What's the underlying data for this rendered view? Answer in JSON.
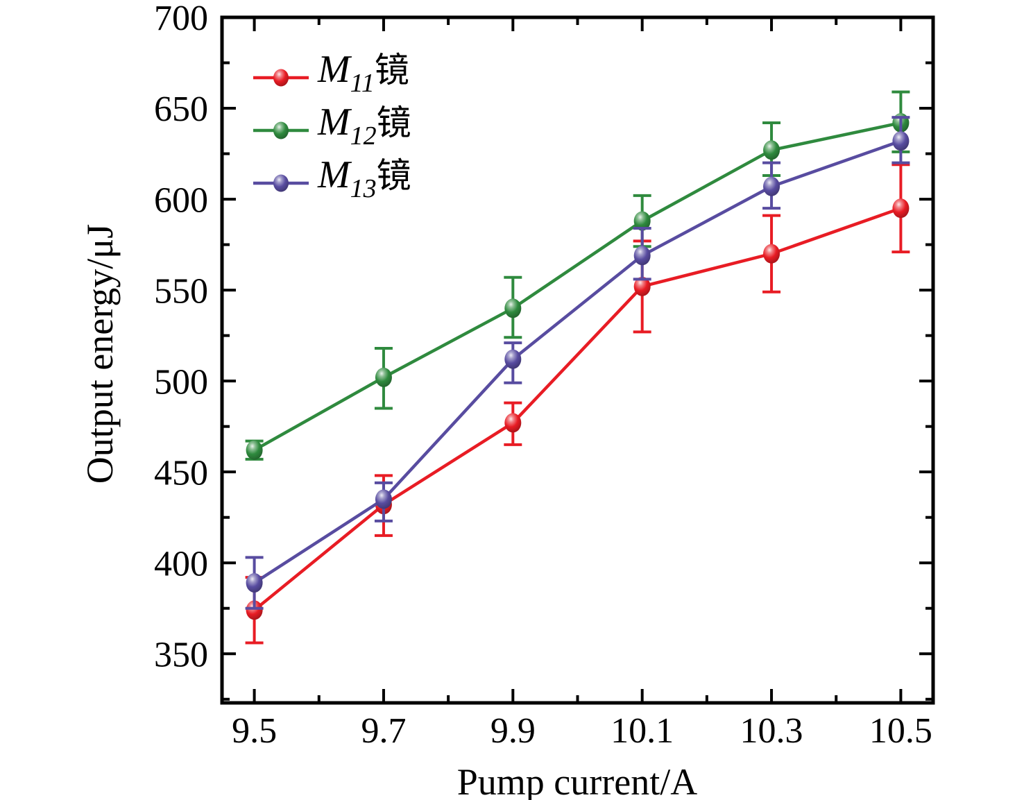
{
  "chart_data": {
    "type": "line",
    "title": "",
    "xlabel": "Pump current/A",
    "ylabel": "Output energy/μJ",
    "grid": false,
    "legend_position": "top-left-inside",
    "axis_color": "#000000",
    "background_color": "#ffffff",
    "xlim": [
      9.45,
      10.55
    ],
    "ylim": [
      323,
      700
    ],
    "x": [
      9.5,
      9.7,
      9.9,
      10.1,
      10.3,
      10.5
    ],
    "x_tick_labels": [
      "9.5",
      "9.7",
      "9.9",
      "10.1",
      "10.3",
      "10.5"
    ],
    "x_minor_ticks": [
      9.6,
      9.8,
      10.0,
      10.2,
      10.4
    ],
    "y_major_ticks": [
      350,
      400,
      450,
      500,
      550,
      600,
      650,
      700
    ],
    "y_tick_labels": [
      "350",
      "400",
      "450",
      "500",
      "550",
      "600",
      "650",
      "700"
    ],
    "y_minor_ticks": [
      325,
      375,
      425,
      475,
      525,
      575,
      625,
      675
    ],
    "series": [
      {
        "name": "M11镜",
        "legend": {
          "base": "M",
          "sub": "11",
          "suffix": "镜"
        },
        "color": "#e81c24",
        "values": [
          374,
          432,
          477,
          552,
          570,
          595
        ],
        "err_up": [
          18,
          16,
          11,
          25,
          21,
          24
        ],
        "err_down": [
          18,
          17,
          12,
          25,
          21,
          24
        ]
      },
      {
        "name": "M12镜",
        "legend": {
          "base": "M",
          "sub": "12",
          "suffix": "镜"
        },
        "color": "#2f8a3e",
        "values": [
          462,
          502,
          540,
          588,
          627,
          642
        ],
        "err_up": [
          5,
          16,
          17,
          14,
          15,
          17
        ],
        "err_down": [
          5,
          17,
          16,
          14,
          14,
          16
        ]
      },
      {
        "name": "M13镜",
        "legend": {
          "base": "M",
          "sub": "13",
          "suffix": "镜"
        },
        "color": "#584ca0",
        "values": [
          389,
          435,
          512,
          569,
          607,
          632
        ],
        "err_up": [
          14,
          9,
          9,
          15,
          13,
          13
        ],
        "err_down": [
          14,
          12,
          13,
          13,
          12,
          12
        ]
      }
    ]
  }
}
